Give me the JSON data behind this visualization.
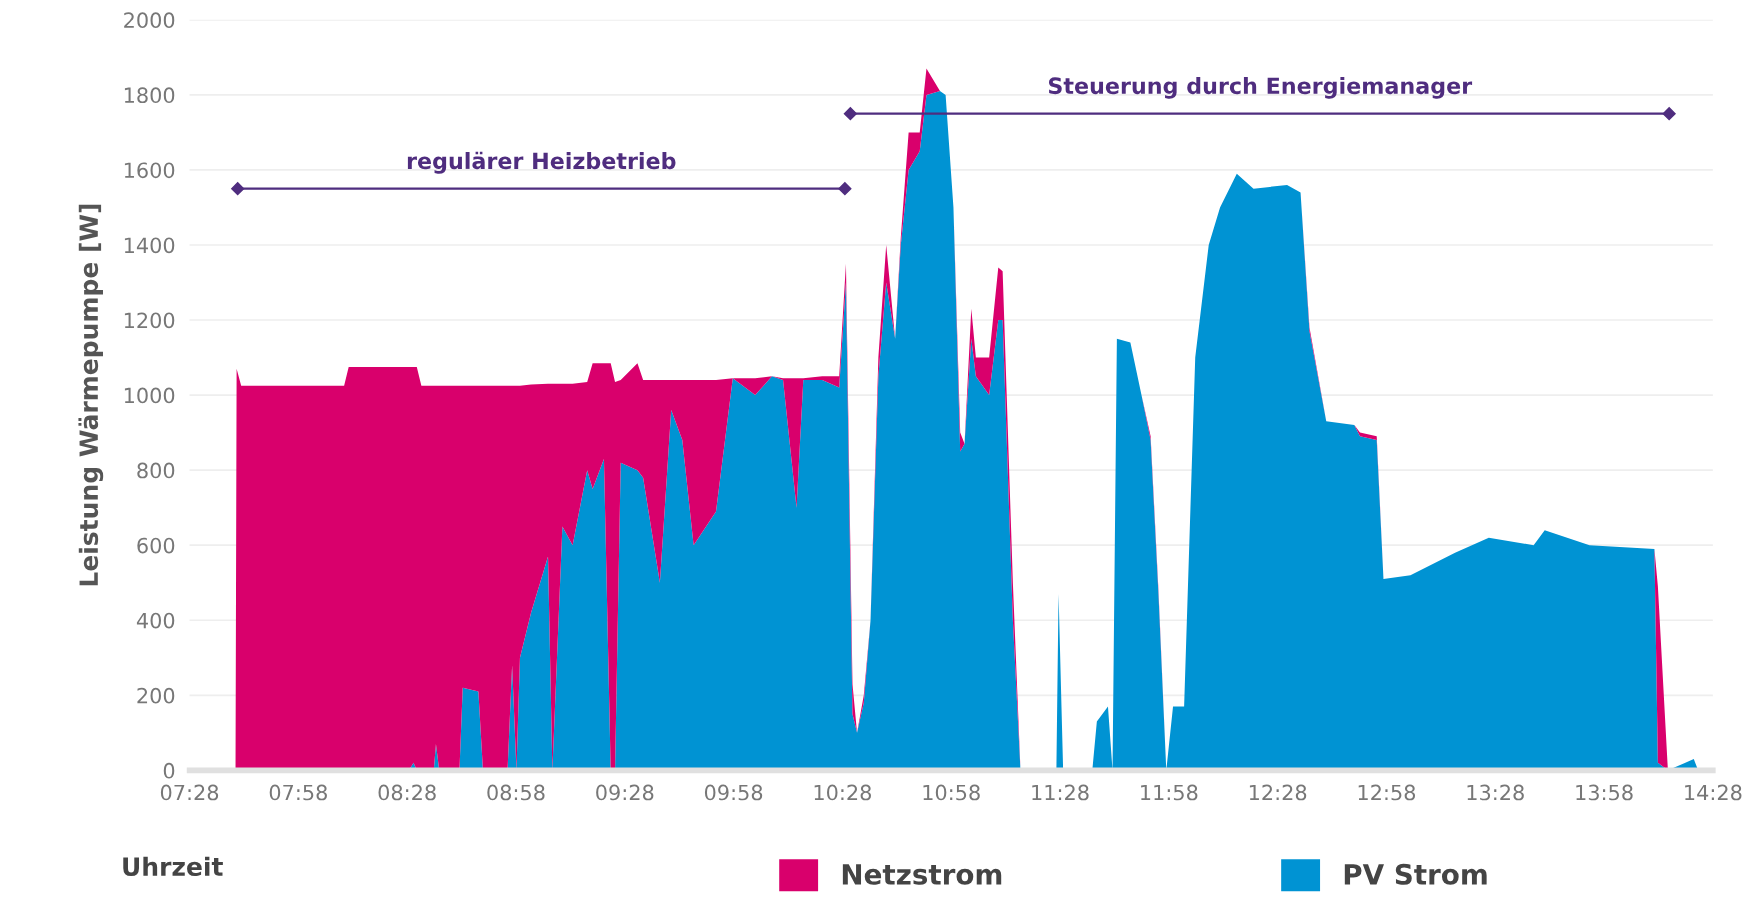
{
  "chart_data": {
    "type": "area",
    "stacked": true,
    "xlabel": "Uhrzeit",
    "ylabel": "Leistung Wärmepumpe [W]",
    "x": [
      7.678,
      7.683,
      7.704,
      8.177,
      8.198,
      8.475,
      8.496,
      8.511,
      8.532,
      8.589,
      8.599,
      8.614,
      8.707,
      8.722,
      8.794,
      8.815,
      8.928,
      8.949,
      8.969,
      8.985,
      9.036,
      9.114,
      9.134,
      9.18,
      9.227,
      9.294,
      9.319,
      9.371,
      9.402,
      9.422,
      9.448,
      9.525,
      9.551,
      9.628,
      9.68,
      9.731,
      9.783,
      9.886,
      9.963,
      10.066,
      10.143,
      10.194,
      10.256,
      10.287,
      10.374,
      10.452,
      10.483,
      10.513,
      10.534,
      10.565,
      10.596,
      10.632,
      10.668,
      10.709,
      10.735,
      10.771,
      10.822,
      10.853,
      10.915,
      10.941,
      10.977,
      11.008,
      11.028,
      11.059,
      11.08,
      11.141,
      11.183,
      11.203,
      11.25,
      11.285,
      11.45,
      11.46,
      11.481,
      11.615,
      11.636,
      11.687,
      11.708,
      11.728,
      11.79,
      11.841,
      11.883,
      11.919,
      11.955,
      11.986,
      12.037,
      12.088,
      12.15,
      12.202,
      12.279,
      12.356,
      12.51,
      12.572,
      12.613,
      12.69,
      12.819,
      12.845,
      12.922,
      12.953,
      13.077,
      13.282,
      13.437,
      13.643,
      13.694,
      13.9,
      14.198,
      14.214,
      14.26,
      14.379,
      14.399
    ],
    "series": [
      {
        "name": "PV Strom",
        "color": "#0093d3",
        "values": [
          0,
          0,
          0,
          0,
          0,
          0,
          20,
          0,
          0,
          0,
          70,
          0,
          0,
          220,
          210,
          0,
          0,
          280,
          0,
          300,
          420,
          570,
          0,
          650,
          600,
          800,
          750,
          830,
          0,
          0,
          820,
          800,
          780,
          500,
          960,
          880,
          600,
          690,
          1045,
          1000,
          1050,
          1040,
          700,
          1040,
          1040,
          1020,
          1300,
          150,
          100,
          180,
          400,
          1050,
          1300,
          1150,
          1400,
          1600,
          1650,
          1800,
          1810,
          1800,
          1500,
          850,
          870,
          1150,
          1050,
          1000,
          1200,
          1200,
          400,
          0,
          0,
          470,
          0,
          0,
          130,
          170,
          0,
          1150,
          1140,
          1000,
          880,
          470,
          0,
          170,
          170,
          1100,
          1400,
          1500,
          1590,
          1550,
          1560,
          1540,
          1170,
          930,
          920,
          890,
          880,
          510,
          520,
          580,
          620,
          600,
          640,
          600,
          590,
          20,
          0,
          30,
          0
        ]
      },
      {
        "name": "Netzstrom",
        "color": "#d9006c",
        "values": [
          0,
          1070,
          1025,
          1025,
          1075,
          1075,
          1055,
          1075,
          1025,
          1025,
          955,
          1025,
          1025,
          805,
          815,
          1025,
          1025,
          745,
          1025,
          725,
          608,
          460,
          1030,
          380,
          430,
          235,
          335,
          255,
          1085,
          1035,
          220,
          285,
          260,
          540,
          80,
          160,
          440,
          350,
          0,
          45,
          0,
          5,
          345,
          5,
          10,
          30,
          50,
          80,
          0,
          20,
          0,
          50,
          100,
          0,
          20,
          100,
          50,
          70,
          0,
          0,
          0,
          50,
          0,
          80,
          50,
          100,
          140,
          130,
          100,
          0,
          0,
          0,
          0,
          0,
          0,
          0,
          0,
          0,
          0,
          0,
          10,
          10,
          0,
          0,
          0,
          0,
          0,
          0,
          0,
          0,
          0,
          0,
          10,
          0,
          0,
          10,
          10,
          0,
          0,
          0,
          0,
          0,
          0,
          0,
          0,
          470,
          0,
          0,
          0
        ]
      }
    ],
    "xlim": [
      7.4667,
      14.4667
    ],
    "xticks": [
      {
        "value": 7.4667,
        "label": "07:28"
      },
      {
        "value": 7.9667,
        "label": "07:58"
      },
      {
        "value": 8.4667,
        "label": "08:28"
      },
      {
        "value": 8.9667,
        "label": "08:58"
      },
      {
        "value": 9.4667,
        "label": "09:28"
      },
      {
        "value": 9.9667,
        "label": "09:58"
      },
      {
        "value": 10.4667,
        "label": "10:28"
      },
      {
        "value": 10.9667,
        "label": "10:58"
      },
      {
        "value": 11.4667,
        "label": "11:28"
      },
      {
        "value": 11.9667,
        "label": "11:58"
      },
      {
        "value": 12.4667,
        "label": "12:28"
      },
      {
        "value": 12.9667,
        "label": "12:58"
      },
      {
        "value": 13.4667,
        "label": "13:28"
      },
      {
        "value": 13.9667,
        "label": "13:58"
      },
      {
        "value": 14.4667,
        "label": "14:28"
      }
    ],
    "ylim": [
      0,
      2000
    ],
    "yticks": [
      0,
      200,
      400,
      600,
      800,
      1000,
      1200,
      1400,
      1600,
      1800,
      2000
    ],
    "grid": "y",
    "legend": "bottom",
    "annotations": [
      "regulärer Heizbetrieb",
      "Steuerung durch Energiemanager"
    ]
  }
}
